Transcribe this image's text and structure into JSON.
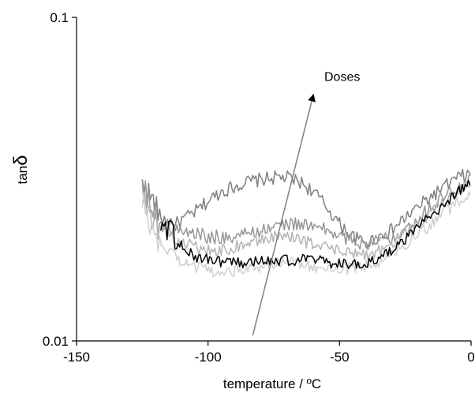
{
  "chart_data": {
    "type": "line",
    "title": "",
    "xlabel": "temperature / ºC",
    "ylabel_prefix": "tan",
    "ylabel_symbol": "δ",
    "xlim": [
      -150,
      0
    ],
    "ylim": [
      0.01,
      0.1
    ],
    "yscale": "log",
    "grid": false,
    "legend": "none",
    "x_ticks": [
      -150,
      -100,
      -50,
      0
    ],
    "x_tick_labels": [
      "-150",
      "-100",
      "-50",
      "0"
    ],
    "y_tick_labels": [
      "0.01",
      "0.1"
    ],
    "y_ticks": [
      0.01,
      0.1
    ],
    "annotation": {
      "text": "Doses",
      "arrow_from": [
        -83,
        0.0104
      ],
      "arrow_to": [
        -60,
        0.0575
      ]
    },
    "series": [
      {
        "color": "#808080",
        "noise": 0.05,
        "x": [
          -125,
          -122,
          -118,
          -112,
          -105,
          -100,
          -95,
          -90,
          -85,
          -80,
          -75,
          -70,
          -65,
          -60,
          -55,
          -50,
          -45,
          -40,
          -35,
          -30,
          -25,
          -20,
          -15,
          -10,
          -5,
          0
        ],
        "y": [
          0.03,
          0.028,
          0.024,
          0.023,
          0.025,
          0.027,
          0.029,
          0.03,
          0.031,
          0.0315,
          0.032,
          0.032,
          0.031,
          0.029,
          0.026,
          0.023,
          0.021,
          0.02,
          0.021,
          0.022,
          0.024,
          0.026,
          0.028,
          0.03,
          0.032,
          0.033
        ]
      },
      {
        "color": "#969696",
        "noise": 0.05,
        "x": [
          -125,
          -122,
          -118,
          -112,
          -105,
          -100,
          -95,
          -90,
          -85,
          -80,
          -75,
          -70,
          -65,
          -60,
          -55,
          -50,
          -45,
          -40,
          -35,
          -30,
          -25,
          -20,
          -15,
          -10,
          -5,
          0
        ],
        "y": [
          0.031,
          0.026,
          0.023,
          0.022,
          0.0215,
          0.021,
          0.021,
          0.021,
          0.0215,
          0.022,
          0.0225,
          0.023,
          0.023,
          0.0225,
          0.022,
          0.021,
          0.0205,
          0.02,
          0.0205,
          0.021,
          0.0225,
          0.024,
          0.026,
          0.028,
          0.03,
          0.0315
        ]
      },
      {
        "color": "#b4b4b4",
        "noise": 0.045,
        "x": [
          -125,
          -122,
          -118,
          -112,
          -105,
          -100,
          -95,
          -90,
          -85,
          -80,
          -75,
          -70,
          -65,
          -60,
          -55,
          -50,
          -45,
          -40,
          -35,
          -30,
          -25,
          -20,
          -15,
          -10,
          -5,
          0
        ],
        "y": [
          0.029,
          0.025,
          0.022,
          0.0205,
          0.0195,
          0.019,
          0.019,
          0.0195,
          0.02,
          0.0205,
          0.021,
          0.021,
          0.0205,
          0.02,
          0.0195,
          0.019,
          0.0185,
          0.0185,
          0.019,
          0.02,
          0.0215,
          0.023,
          0.025,
          0.027,
          0.029,
          0.031
        ]
      },
      {
        "color": "#cfcfcf",
        "noise": 0.045,
        "x": [
          -125,
          -122,
          -118,
          -112,
          -105,
          -100,
          -95,
          -90,
          -85,
          -80,
          -75,
          -70,
          -65,
          -60,
          -55,
          -50,
          -45,
          -40,
          -35,
          -30,
          -25,
          -20,
          -15,
          -10,
          -5,
          0
        ],
        "y": [
          0.027,
          0.023,
          0.02,
          0.018,
          0.017,
          0.0165,
          0.0165,
          0.0165,
          0.017,
          0.017,
          0.0175,
          0.0175,
          0.0175,
          0.017,
          0.017,
          0.0168,
          0.0168,
          0.017,
          0.0175,
          0.0185,
          0.02,
          0.0215,
          0.023,
          0.025,
          0.027,
          0.029
        ]
      },
      {
        "color": "#000000",
        "noise": 0.04,
        "x": [
          -118,
          -115,
          -112,
          -108,
          -105,
          -100,
          -95,
          -90,
          -85,
          -80,
          -75,
          -70,
          -65,
          -60,
          -55,
          -50,
          -45,
          -40,
          -35,
          -30,
          -25,
          -20,
          -15,
          -10,
          -5,
          0
        ],
        "y": [
          0.0235,
          0.022,
          0.0205,
          0.019,
          0.0183,
          0.0178,
          0.0175,
          0.0175,
          0.0175,
          0.0177,
          0.0177,
          0.0178,
          0.0178,
          0.0178,
          0.0175,
          0.0173,
          0.0172,
          0.0173,
          0.0178,
          0.019,
          0.0205,
          0.0225,
          0.0245,
          0.0265,
          0.029,
          0.0315
        ]
      }
    ]
  }
}
